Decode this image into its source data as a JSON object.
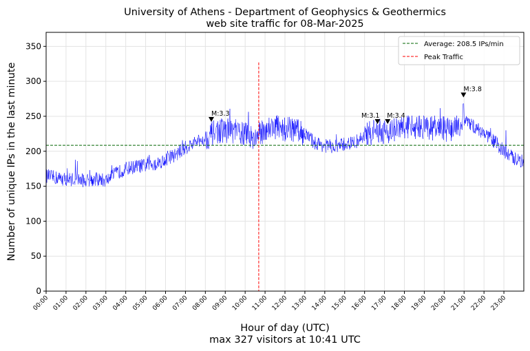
{
  "chart_data": {
    "type": "line",
    "title": "University of Athens - Department of Geophysics & Geothermics",
    "subtitle": "web site traffic for 08-Mar-2025",
    "xlabel": "Hour of day (UTC)",
    "xlabel2": "max 327 visitors at 10:41 UTC",
    "ylabel": "Number of unique IPs in the last minute",
    "xlim": [
      0,
      24
    ],
    "ylim": [
      0,
      370
    ],
    "grid": true,
    "x_ticks": [
      "00:00",
      "01:00",
      "02:00",
      "03:00",
      "04:00",
      "05:00",
      "06:00",
      "07:00",
      "08:00",
      "09:00",
      "10:00",
      "11:00",
      "12:00",
      "13:00",
      "14:00",
      "15:00",
      "16:00",
      "17:00",
      "18:00",
      "19:00",
      "20:00",
      "21:00",
      "22:00",
      "23:00"
    ],
    "y_ticks": [
      0,
      50,
      100,
      150,
      200,
      250,
      300,
      350
    ],
    "series": [
      {
        "name": "visitors",
        "color": "#0000ff",
        "x_step_hours": 0.5,
        "half_hour_means": [
          165,
          162,
          160,
          160,
          158,
          160,
          158,
          168,
          175,
          178,
          180,
          182,
          188,
          195,
          205,
          212,
          218,
          228,
          230,
          228,
          225,
          218,
          232,
          235,
          232,
          230,
          225,
          212,
          208,
          206,
          210,
          212,
          222,
          228,
          228,
          230,
          235,
          235,
          235,
          233,
          232,
          230,
          245,
          235,
          225,
          215,
          200,
          190,
          185
        ]
      }
    ],
    "average": {
      "value": 208.5,
      "label": "Average: 208.5 IPs/min",
      "color": "#006400"
    },
    "peak": {
      "hour": 10.683,
      "value": 327,
      "label": "Peak Traffic",
      "color": "#ff0000"
    },
    "legend_position": "top-right",
    "annotations": [
      {
        "hour": 8.3,
        "value": 245,
        "label": "M:3.3"
      },
      {
        "hour": 16.65,
        "value": 242,
        "label": "M:3.1"
      },
      {
        "hour": 17.16,
        "value": 242,
        "label": "M:3.4"
      },
      {
        "hour": 20.97,
        "value": 280,
        "label": "M:3.8"
      }
    ]
  }
}
